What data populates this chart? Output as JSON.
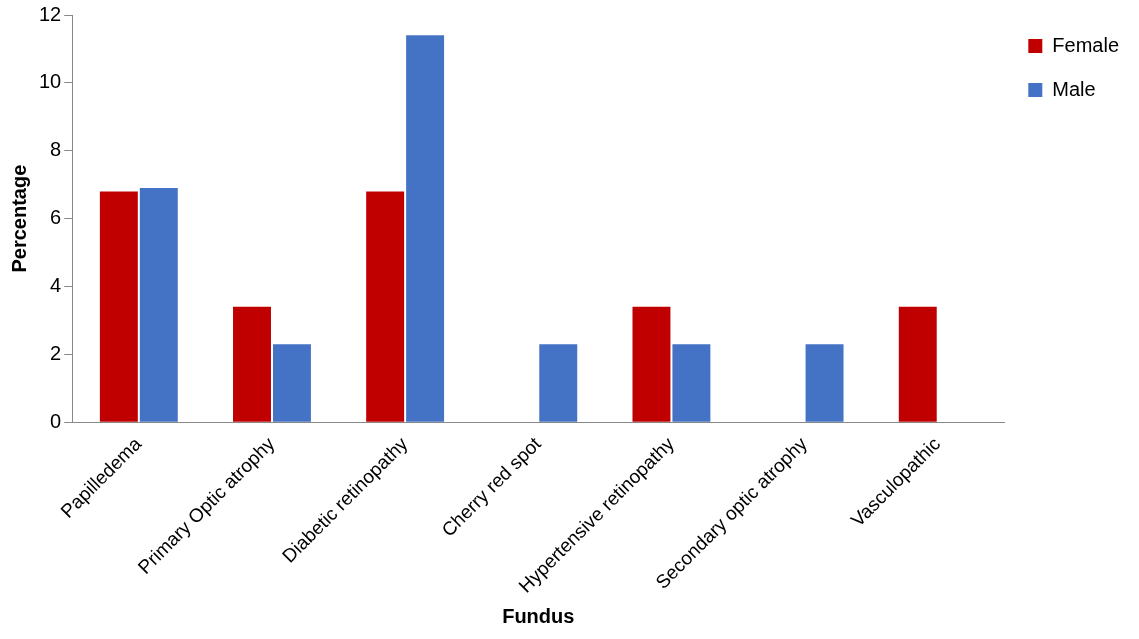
{
  "chart_data": {
    "type": "bar",
    "xlabel": "Fundus",
    "ylabel": "Percentage",
    "categories": [
      "Papilledema",
      "Primary Optic atrophy",
      "Diabetic retinopathy",
      "Cherry red spot",
      "Hypertensive retinopathy",
      "Secondary optic atrophy",
      "Vasculopathic"
    ],
    "series": [
      {
        "name": "Female",
        "color": "#c00000",
        "values": [
          6.8,
          3.4,
          6.8,
          0,
          3.4,
          0,
          3.4
        ]
      },
      {
        "name": "Male",
        "color": "#4472c4",
        "values": [
          6.9,
          2.3,
          11.4,
          2.3,
          2.3,
          2.3,
          0
        ]
      }
    ],
    "ylim": [
      0,
      12
    ],
    "yticks": [
      0,
      2,
      4,
      6,
      8,
      10,
      12
    ],
    "grid": false,
    "legend": "top right"
  }
}
